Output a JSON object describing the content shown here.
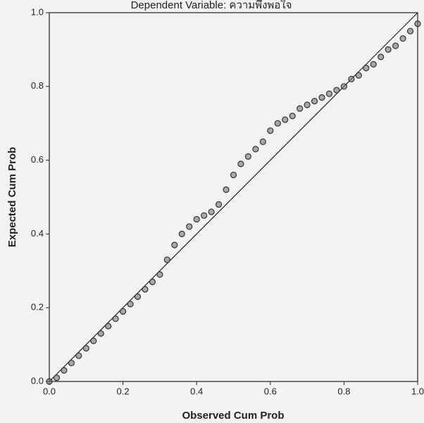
{
  "chart_data": {
    "type": "scatter",
    "title": "Dependent Variable: ความพึงพอใจ",
    "x_label": "Observed Cum Prob",
    "y_label": "Expected Cum Prob",
    "x": [
      0,
      0.02,
      0.04,
      0.06,
      0.08,
      0.1,
      0.12,
      0.14,
      0.16,
      0.18,
      0.2,
      0.22,
      0.24,
      0.26,
      0.28,
      0.3,
      0.32,
      0.34,
      0.36,
      0.38,
      0.4,
      0.42,
      0.44,
      0.46,
      0.48,
      0.5,
      0.52,
      0.54,
      0.56,
      0.58,
      0.6,
      0.62,
      0.64,
      0.66,
      0.68,
      0.7,
      0.72,
      0.74,
      0.76,
      0.78,
      0.8,
      0.82,
      0.84,
      0.86,
      0.88,
      0.9,
      0.92,
      0.94,
      0.96,
      0.98,
      1.0
    ],
    "values": [
      0,
      0.01,
      0.03,
      0.05,
      0.07,
      0.09,
      0.11,
      0.13,
      0.15,
      0.17,
      0.19,
      0.21,
      0.23,
      0.25,
      0.27,
      0.29,
      0.33,
      0.37,
      0.4,
      0.42,
      0.44,
      0.45,
      0.46,
      0.48,
      0.52,
      0.56,
      0.59,
      0.61,
      0.63,
      0.65,
      0.68,
      0.7,
      0.71,
      0.72,
      0.74,
      0.75,
      0.76,
      0.77,
      0.78,
      0.79,
      0.8,
      0.82,
      0.83,
      0.85,
      0.86,
      0.88,
      0.9,
      0.91,
      0.93,
      0.95,
      0.97
    ],
    "color": "#777777",
    "xlim": [
      0,
      1
    ],
    "ylim": [
      0,
      1
    ],
    "xticks": [
      {
        "value": 0,
        "label": "0.0"
      },
      0.2,
      0.4,
      0.6,
      0.8,
      {
        "value": 1,
        "label": "1.0"
      }
    ],
    "yticks": [
      {
        "value": 0,
        "label": "0.0"
      },
      0.2,
      0.4,
      0.6,
      0.8,
      {
        "value": 1,
        "label": "1.0"
      }
    ],
    "reference_line": true
  }
}
